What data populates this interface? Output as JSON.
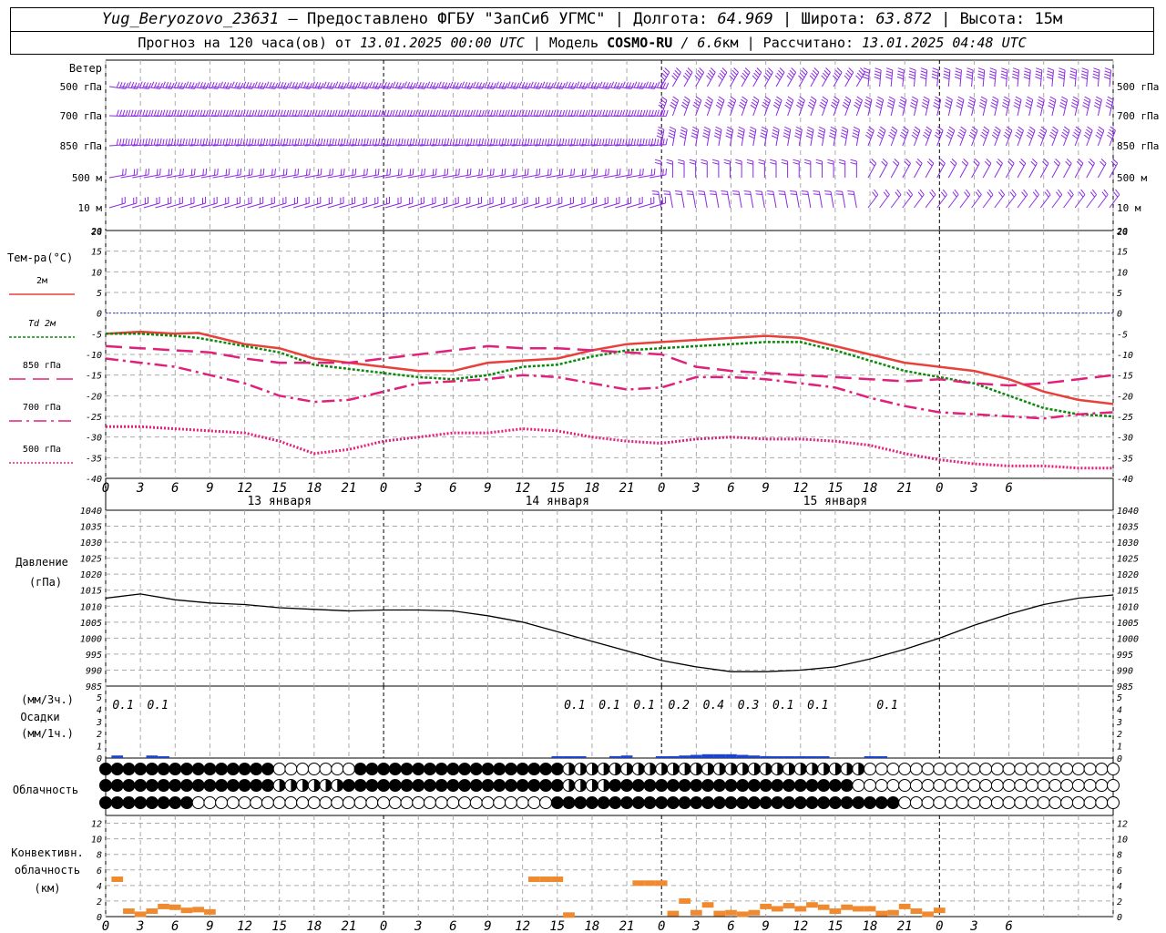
{
  "header": {
    "station": "Yug_Beryozovo_23631",
    "provider": "– Предоставлено ФГБУ \"ЗапСиб УГМС\"",
    "lon_label": "| Долгота:",
    "lon": "64.969",
    "lat_label": "| Широта:",
    "lat": "63.872",
    "alt_label": "| Высота:",
    "alt": "15м",
    "fc_prefix": "Прогноз на 120 часа(ов) от",
    "fc_date": "13.01.2025 00:00 UTC",
    "model_label": "| Модель",
    "model": "COSMO-RU",
    "model_res": "/ 6.6",
    "model_res_unit": "км",
    "calc_label": "| Рассчитано:",
    "calc_date": "13.01.2025 04:48 UTC"
  },
  "colors": {
    "t2m": "#e8413c",
    "td2m": "#0a8a0a",
    "upper": "#e0207a",
    "wind": "#8a2be2",
    "precip": "#1a44cc",
    "conv": "#f08a30",
    "zero_line": "#3333cc"
  },
  "chart_data": [
    {
      "type": "wind-barbs",
      "title": "Ветер",
      "levels": [
        "500 гПа",
        "700 гПа",
        "850 гПа",
        "500 м",
        "10 м"
      ],
      "scale_ticks": [
        "20"
      ]
    },
    {
      "type": "line",
      "ylabel": "Тем-ра(°C)",
      "ylim": [
        -40,
        20
      ],
      "yticks": [
        20,
        15,
        10,
        5,
        0,
        -5,
        -10,
        -15,
        -20,
        -25,
        -30,
        -35,
        -40
      ],
      "x_hours": [
        0,
        3,
        6,
        9,
        12,
        15,
        18,
        21,
        0,
        3,
        6,
        9,
        12,
        15,
        18,
        21,
        0,
        3,
        6,
        9,
        12,
        15,
        18,
        21,
        0,
        3,
        6
      ],
      "day_labels": [
        "13 января",
        "14 января",
        "15 января"
      ],
      "series": [
        {
          "name": "2м",
          "style": "solid",
          "points": [
            [
              0,
              -5
            ],
            [
              3,
              -4.5
            ],
            [
              6,
              -5
            ],
            [
              8,
              -4.8
            ],
            [
              12,
              -7.5
            ],
            [
              15,
              -8.5
            ],
            [
              18,
              -11
            ],
            [
              21,
              -12
            ],
            [
              24,
              -13
            ],
            [
              27,
              -14
            ],
            [
              30,
              -14
            ],
            [
              33,
              -12
            ],
            [
              36,
              -11.5
            ],
            [
              39,
              -11
            ],
            [
              42,
              -9
            ],
            [
              45,
              -7.5
            ],
            [
              48,
              -7
            ],
            [
              51,
              -6.5
            ],
            [
              54,
              -6
            ],
            [
              57,
              -5.5
            ],
            [
              60,
              -6
            ],
            [
              63,
              -8
            ],
            [
              66,
              -10
            ],
            [
              69,
              -12
            ],
            [
              72,
              -13
            ],
            [
              75,
              -14
            ],
            [
              78,
              -16
            ],
            [
              81,
              -19
            ],
            [
              84,
              -21
            ],
            [
              87,
              -22
            ]
          ]
        },
        {
          "name": "Td 2м",
          "style": "dotted",
          "points": [
            [
              0,
              -5
            ],
            [
              3,
              -5
            ],
            [
              6,
              -5.5
            ],
            [
              8,
              -6
            ],
            [
              12,
              -8
            ],
            [
              15,
              -9.5
            ],
            [
              18,
              -12.5
            ],
            [
              21,
              -13.5
            ],
            [
              24,
              -14.5
            ],
            [
              27,
              -15.5
            ],
            [
              30,
              -16
            ],
            [
              33,
              -15
            ],
            [
              36,
              -13
            ],
            [
              39,
              -12.5
            ],
            [
              42,
              -10.5
            ],
            [
              45,
              -9
            ],
            [
              48,
              -8.5
            ],
            [
              51,
              -8
            ],
            [
              54,
              -7.5
            ],
            [
              57,
              -7
            ],
            [
              60,
              -7
            ],
            [
              63,
              -9
            ],
            [
              66,
              -11.5
            ],
            [
              69,
              -14
            ],
            [
              72,
              -15.5
            ],
            [
              75,
              -17
            ],
            [
              78,
              -20
            ],
            [
              81,
              -23
            ],
            [
              84,
              -24.5
            ],
            [
              87,
              -25
            ]
          ]
        },
        {
          "name": "850 гПа",
          "style": "dash",
          "points": [
            [
              0,
              -8
            ],
            [
              3,
              -8.5
            ],
            [
              6,
              -9
            ],
            [
              9,
              -9.5
            ],
            [
              12,
              -11
            ],
            [
              15,
              -12
            ],
            [
              18,
              -12
            ],
            [
              21,
              -12
            ],
            [
              24,
              -11
            ],
            [
              27,
              -10
            ],
            [
              30,
              -9
            ],
            [
              33,
              -8
            ],
            [
              36,
              -8.5
            ],
            [
              39,
              -8.5
            ],
            [
              42,
              -9
            ],
            [
              45,
              -9.5
            ],
            [
              48,
              -10
            ],
            [
              51,
              -13
            ],
            [
              54,
              -14
            ],
            [
              57,
              -14.5
            ],
            [
              60,
              -15
            ],
            [
              63,
              -15.5
            ],
            [
              66,
              -16
            ],
            [
              69,
              -16.5
            ],
            [
              72,
              -16
            ],
            [
              75,
              -17
            ],
            [
              78,
              -17.5
            ],
            [
              81,
              -17
            ],
            [
              84,
              -16
            ],
            [
              87,
              -15
            ]
          ]
        },
        {
          "name": "700 гПа",
          "style": "dashdot",
          "points": [
            [
              0,
              -11
            ],
            [
              3,
              -12
            ],
            [
              6,
              -13
            ],
            [
              9,
              -15
            ],
            [
              12,
              -17
            ],
            [
              15,
              -20
            ],
            [
              18,
              -21.5
            ],
            [
              21,
              -21
            ],
            [
              24,
              -19
            ],
            [
              27,
              -17
            ],
            [
              30,
              -16.5
            ],
            [
              33,
              -16
            ],
            [
              36,
              -15
            ],
            [
              39,
              -15.5
            ],
            [
              42,
              -17
            ],
            [
              45,
              -18.5
            ],
            [
              48,
              -18
            ],
            [
              51,
              -15.5
            ],
            [
              54,
              -15.5
            ],
            [
              57,
              -16
            ],
            [
              60,
              -17
            ],
            [
              63,
              -18
            ],
            [
              66,
              -20.5
            ],
            [
              69,
              -22.5
            ],
            [
              72,
              -24
            ],
            [
              75,
              -24.5
            ],
            [
              78,
              -25
            ],
            [
              81,
              -25.5
            ],
            [
              84,
              -24.5
            ],
            [
              87,
              -24
            ]
          ]
        },
        {
          "name": "500 гПа",
          "style": "dots",
          "points": [
            [
              0,
              -27.5
            ],
            [
              3,
              -27.5
            ],
            [
              6,
              -28
            ],
            [
              9,
              -28.5
            ],
            [
              12,
              -29
            ],
            [
              15,
              -31
            ],
            [
              18,
              -34
            ],
            [
              21,
              -33
            ],
            [
              24,
              -31
            ],
            [
              27,
              -30
            ],
            [
              30,
              -29
            ],
            [
              33,
              -29
            ],
            [
              36,
              -28
            ],
            [
              39,
              -28.5
            ],
            [
              42,
              -30
            ],
            [
              45,
              -31
            ],
            [
              48,
              -31.5
            ],
            [
              51,
              -30.5
            ],
            [
              54,
              -30
            ],
            [
              57,
              -30.5
            ],
            [
              60,
              -30.5
            ],
            [
              63,
              -31
            ],
            [
              66,
              -32
            ],
            [
              69,
              -34
            ],
            [
              72,
              -35.5
            ],
            [
              75,
              -36.5
            ],
            [
              78,
              -37
            ],
            [
              81,
              -37
            ],
            [
              84,
              -37.5
            ],
            [
              87,
              -37.5
            ]
          ]
        }
      ]
    },
    {
      "type": "line",
      "ylabel": "Давление",
      "yunit": "(гПа)",
      "ylim": [
        985,
        1040
      ],
      "yticks": [
        1040,
        1035,
        1030,
        1025,
        1020,
        1015,
        1010,
        1005,
        1000,
        995,
        990,
        985
      ],
      "series": [
        {
          "name": "pressure",
          "points": [
            [
              0,
              1012.5
            ],
            [
              3,
              1013.8
            ],
            [
              6,
              1012
            ],
            [
              9,
              1011
            ],
            [
              12,
              1010.5
            ],
            [
              15,
              1009.5
            ],
            [
              18,
              1009
            ],
            [
              21,
              1008.5
            ],
            [
              24,
              1008.8
            ],
            [
              27,
              1008.8
            ],
            [
              30,
              1008.5
            ],
            [
              33,
              1007
            ],
            [
              36,
              1005
            ],
            [
              39,
              1002
            ],
            [
              42,
              999
            ],
            [
              45,
              996
            ],
            [
              48,
              993
            ],
            [
              51,
              991
            ],
            [
              54,
              989.5
            ],
            [
              57,
              989.5
            ],
            [
              60,
              990
            ],
            [
              63,
              991
            ],
            [
              66,
              993.5
            ],
            [
              69,
              996.5
            ],
            [
              72,
              1000
            ],
            [
              75,
              1004
            ],
            [
              78,
              1007.5
            ],
            [
              81,
              1010.5
            ],
            [
              84,
              1012.5
            ],
            [
              87,
              1013.5
            ]
          ]
        }
      ]
    },
    {
      "type": "bar",
      "ylabel": "Осадки",
      "yunit_top": "(мм/3ч.)",
      "yunit_bottom": "(мм/1ч.)",
      "ylim": [
        0,
        5
      ],
      "yticks": [
        5,
        4,
        3,
        2,
        1,
        0
      ],
      "labels": [
        {
          "hour": 1.5,
          "text": "0.1"
        },
        {
          "hour": 4.5,
          "text": "0.1"
        },
        {
          "hour": 40.5,
          "text": "0.1"
        },
        {
          "hour": 43.5,
          "text": "0.1"
        },
        {
          "hour": 46.5,
          "text": "0.1"
        },
        {
          "hour": 49.5,
          "text": "0.2"
        },
        {
          "hour": 52.5,
          "text": "0.4"
        },
        {
          "hour": 55.5,
          "text": "0.3"
        },
        {
          "hour": 58.5,
          "text": "0.1"
        },
        {
          "hour": 61.5,
          "text": "0.1"
        },
        {
          "hour": 67.5,
          "text": "0.1"
        }
      ],
      "bars": [
        [
          1,
          0.2
        ],
        [
          4,
          0.2
        ],
        [
          5,
          0.1
        ],
        [
          39,
          0.05
        ],
        [
          40,
          0.05
        ],
        [
          41,
          0.05
        ],
        [
          44,
          0.15
        ],
        [
          45,
          0.2
        ],
        [
          48,
          0.1
        ],
        [
          49,
          0.15
        ],
        [
          50,
          0.2
        ],
        [
          51,
          0.25
        ],
        [
          52,
          0.3
        ],
        [
          53,
          0.3
        ],
        [
          54,
          0.3
        ],
        [
          55,
          0.25
        ],
        [
          56,
          0.2
        ],
        [
          57,
          0.15
        ],
        [
          58,
          0.1
        ],
        [
          59,
          0.05
        ],
        [
          60,
          0.05
        ],
        [
          61,
          0.05
        ],
        [
          62,
          0.05
        ],
        [
          66,
          0.05
        ],
        [
          67,
          0.05
        ]
      ]
    },
    {
      "type": "cloud-symbols",
      "ylabel": "Облачность",
      "rows": 3
    },
    {
      "type": "bar",
      "ylabel": "Конвективн.",
      "ylabel2": "облачность",
      "yunit": "(км)",
      "ylim": [
        0,
        13
      ],
      "yticks": [
        12,
        10,
        8,
        6,
        4,
        2,
        0
      ],
      "segments": [
        [
          1,
          4.8
        ],
        [
          2,
          0.7
        ],
        [
          3,
          0.3
        ],
        [
          4,
          0.7
        ],
        [
          5,
          1.3
        ],
        [
          6,
          1.2
        ],
        [
          7,
          0.8
        ],
        [
          8,
          0.9
        ],
        [
          9,
          0.6
        ],
        [
          37,
          4.8
        ],
        [
          38,
          4.8
        ],
        [
          39,
          4.8
        ],
        [
          40,
          0.2
        ],
        [
          46,
          4.3
        ],
        [
          47,
          4.3
        ],
        [
          48,
          4.3
        ],
        [
          49,
          0.4
        ],
        [
          50,
          2
        ],
        [
          51,
          0.5
        ],
        [
          52,
          1.5
        ],
        [
          53,
          0.4
        ],
        [
          54,
          0.5
        ],
        [
          55,
          0.3
        ],
        [
          56,
          0.5
        ],
        [
          57,
          1.3
        ],
        [
          58,
          1
        ],
        [
          59,
          1.4
        ],
        [
          60,
          1
        ],
        [
          61,
          1.5
        ],
        [
          62,
          1.2
        ],
        [
          63,
          0.7
        ],
        [
          64,
          1.2
        ],
        [
          65,
          1
        ],
        [
          66,
          1
        ],
        [
          67,
          0.4
        ],
        [
          68,
          0.5
        ],
        [
          69,
          1.3
        ],
        [
          70,
          0.7
        ],
        [
          71,
          0.3
        ],
        [
          72,
          0.8
        ]
      ]
    }
  ]
}
